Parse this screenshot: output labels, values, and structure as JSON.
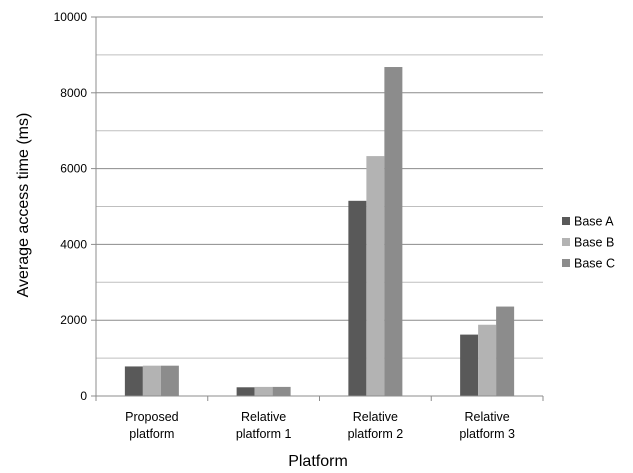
{
  "chart_data": {
    "type": "bar",
    "categories": [
      [
        "Proposed",
        "platform"
      ],
      [
        "Relative",
        "platform 1"
      ],
      [
        "Relative",
        "platform 2"
      ],
      [
        "Relative",
        "platform 3"
      ]
    ],
    "series": [
      {
        "name": "Base A",
        "color": "#595959",
        "values": [
          780,
          230,
          5150,
          1620
        ]
      },
      {
        "name": "Base B",
        "color": "#b3b3b3",
        "values": [
          800,
          240,
          6330,
          1880
        ]
      },
      {
        "name": "Base C",
        "color": "#8c8c8c",
        "values": [
          800,
          240,
          8680,
          2360
        ]
      }
    ],
    "xlabel": "Platform",
    "ylabel": "Average access time (ms)",
    "ylim": [
      0,
      10000
    ],
    "yticks": [
      0,
      2000,
      4000,
      6000,
      8000,
      10000
    ],
    "grid": true,
    "legend_position": "right"
  }
}
